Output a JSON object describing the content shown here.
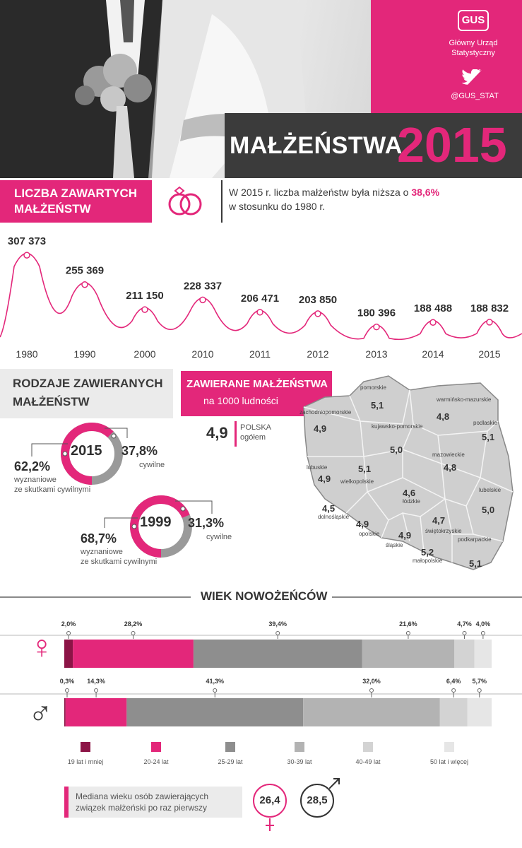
{
  "header": {
    "org_logo_text": "GUS",
    "org_name": [
      "Główny Urząd",
      "Statystyczny"
    ],
    "twitter_handle": "@GUS_STAT",
    "title_word": "MAŁŻEŃSTWA",
    "title_year": "2015"
  },
  "marriages_section": {
    "label": [
      "LICZBA ZAWARTYCH",
      "MAŁŻEŃSTW"
    ],
    "description_prefix": "W 2015 r. liczba małżeństw była niższa o ",
    "description_highlight": "38,6%",
    "description_suffix": "w stosunku do 1980 r."
  },
  "types_section": {
    "label": [
      "RODZAJE ZAWIERANYCH",
      "MAŁŻEŃSTW"
    ],
    "donuts": [
      {
        "year": "2015",
        "religious_pct": "62,2%",
        "civil_pct": "37,8%",
        "religious_label": [
          "wyznaniowe",
          "ze skutkami cywilnymi"
        ],
        "civil_label": "cywilne",
        "religious_frac": 0.622
      },
      {
        "year": "1999",
        "religious_pct": "68,7%",
        "civil_pct": "31,3%",
        "religious_label": [
          "wyznaniowe",
          "ze skutkami cywilnymi"
        ],
        "civil_label": "cywilne",
        "religious_frac": 0.687
      }
    ]
  },
  "rate_section": {
    "label": "ZAWIERANE MAŁŻEŃSTWA",
    "sublabel": "na 1000 ludności",
    "poland_value": "4,9",
    "poland_label": [
      "POLSKA",
      "ogółem"
    ],
    "regions": [
      {
        "name": "pomorskie",
        "value": "5,1"
      },
      {
        "name": "warmińsko-mazurskie",
        "value": "4,8"
      },
      {
        "name": "zachodniopomorskie",
        "value": "4,9"
      },
      {
        "name": "kujawsko-pomorskie",
        "value": "5,0"
      },
      {
        "name": "podlaskie",
        "value": "5,1"
      },
      {
        "name": "mazowieckie",
        "value": "4,8"
      },
      {
        "name": "lubuskie",
        "value": "4,9"
      },
      {
        "name": "wielkopolskie",
        "value": "5,1"
      },
      {
        "name": "łódzkie",
        "value": "4,6"
      },
      {
        "name": "lubelskie",
        "value": "5,0"
      },
      {
        "name": "dolnośląskie",
        "value": "4,5"
      },
      {
        "name": "opolskie",
        "value": "4,9"
      },
      {
        "name": "śląskie",
        "value": "4,9"
      },
      {
        "name": "świętokrzyskie",
        "value": "4,7"
      },
      {
        "name": "małopolskie",
        "value": "5,2"
      },
      {
        "name": "podkarpackie",
        "value": "5,1"
      }
    ]
  },
  "age_section": {
    "title": "WIEK NOWOŻEŃCÓW",
    "legend": [
      "19 lat i mniej",
      "20-24 lat",
      "25-29 lat",
      "30-39 lat",
      "40-49 lat",
      "50 lat i więcej"
    ],
    "median_text": [
      "Mediana wieku osób zawierających",
      "związek małżeński po raz pierwszy"
    ],
    "median_female": "26,4",
    "median_male": "28,5",
    "female_symbol": "♀",
    "male_symbol": "♂"
  },
  "colors": {
    "accent": "#e3277a",
    "dark": "#3b3b3b",
    "age_colors": [
      "#8c1446",
      "#e3277a",
      "#8e8e8e",
      "#b3b3b3",
      "#d3d3d3",
      "#e6e6e6"
    ]
  },
  "chart_data": [
    {
      "type": "line",
      "title": "LICZBA ZAWARTYCH MAŁŻEŃSTW",
      "categories": [
        "1980",
        "1990",
        "2000",
        "2010",
        "2011",
        "2012",
        "2013",
        "2014",
        "2015"
      ],
      "values": [
        307373,
        255369,
        211150,
        228337,
        206471,
        203850,
        180396,
        188488,
        188832
      ],
      "value_labels": [
        "307 373",
        "255 369",
        "211 150",
        "228 337",
        "206 471",
        "203 850",
        "180 396",
        "188 488",
        "188 832"
      ]
    },
    {
      "type": "bar",
      "title": "WIEK NOWOŻEŃCÓW",
      "stacked": true,
      "orientation": "horizontal",
      "categories": [
        "19 lat i mniej",
        "20-24 lat",
        "25-29 lat",
        "30-39 lat",
        "40-49 lat",
        "50 lat i więcej"
      ],
      "series": [
        {
          "name": "♀",
          "values": [
            2.0,
            28.2,
            39.4,
            21.6,
            4.7,
            4.0
          ],
          "labels": [
            "2,0%",
            "28,2%",
            "39,4%",
            "21,6%",
            "4,7%",
            "4,0%"
          ]
        },
        {
          "name": "♂",
          "values": [
            0.3,
            14.3,
            41.3,
            32.0,
            6.4,
            5.7
          ],
          "labels": [
            "0,3%",
            "14,3%",
            "41,3%",
            "32,0%",
            "6,4%",
            "5,7%"
          ]
        }
      ]
    }
  ]
}
